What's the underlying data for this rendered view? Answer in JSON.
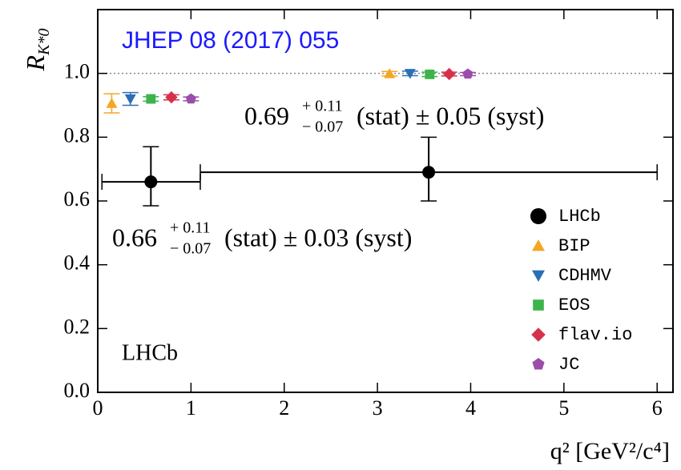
{
  "chart_data": {
    "type": "scatter",
    "note_label": "JHEP 08 (2017) 055",
    "experiment_label": "LHCb",
    "ylabel": "R",
    "ylabel_sub": "K*0",
    "xlabel": "q² [GeV²/c⁴]",
    "xlim": [
      0,
      6.17
    ],
    "ylim": [
      0,
      1.2
    ],
    "xticks": [
      0,
      1,
      2,
      3,
      4,
      5,
      6
    ],
    "yticks": [
      {
        "value": 0.0,
        "label": "0.0"
      },
      0.2,
      0.4,
      0.6,
      0.8,
      {
        "value": 1.0,
        "label": "1.0"
      }
    ],
    "hline": 1.0,
    "legend": "lower right",
    "annotations": [
      {
        "main": "0.69",
        "sup": "+ 0.11",
        "sub": "− 0.07",
        "tail": "(stat) ± 0.05 (syst)"
      },
      {
        "main": "0.66",
        "sup": "+ 0.11",
        "sub": "− 0.07",
        "tail": "(stat) ± 0.03 (syst)"
      }
    ],
    "series": [
      {
        "name": "LHCb",
        "color": "#000000",
        "marker": "circle",
        "x": [
          0.57,
          3.55
        ],
        "values": [
          0.66,
          0.69
        ],
        "yerr_plus": [
          0.11,
          0.11
        ],
        "yerr_minus": [
          0.075,
          0.09
        ],
        "xlow": [
          0.045,
          1.1
        ],
        "xhigh": [
          1.1,
          6.0
        ]
      },
      {
        "name": "BIP",
        "color": "#f5a623",
        "marker": "triangle-up",
        "x": [
          0.15,
          3.13
        ],
        "values": [
          0.906,
          0.999
        ],
        "yerr_plus": [
          0.03,
          0.007
        ],
        "yerr_minus": [
          0.03,
          0.007
        ]
      },
      {
        "name": "CDHMV",
        "color": "#2a6fb5",
        "marker": "triangle-down",
        "x": [
          0.35,
          3.35
        ],
        "values": [
          0.92,
          1.0
        ],
        "yerr_plus": [
          0.02,
          0.007
        ],
        "yerr_minus": [
          0.02,
          0.007
        ]
      },
      {
        "name": "EOS",
        "color": "#3cb44b",
        "marker": "square",
        "x": [
          0.57,
          3.56
        ],
        "values": [
          0.92,
          0.997
        ],
        "yerr_plus": [
          0.007,
          0.007
        ],
        "yerr_minus": [
          0.007,
          0.007
        ]
      },
      {
        "name": "flav.io",
        "color": "#d6304a",
        "marker": "diamond",
        "x": [
          0.79,
          3.77
        ],
        "values": [
          0.925,
          0.998
        ],
        "yerr_plus": [
          0.008,
          0.006
        ],
        "yerr_minus": [
          0.008,
          0.006
        ]
      },
      {
        "name": "JC",
        "color": "#9b4dab",
        "marker": "pentagon",
        "x": [
          1.0,
          3.97
        ],
        "values": [
          0.92,
          0.998
        ],
        "yerr_plus": [
          0.006,
          0.005
        ],
        "yerr_minus": [
          0.006,
          0.005
        ]
      }
    ]
  }
}
